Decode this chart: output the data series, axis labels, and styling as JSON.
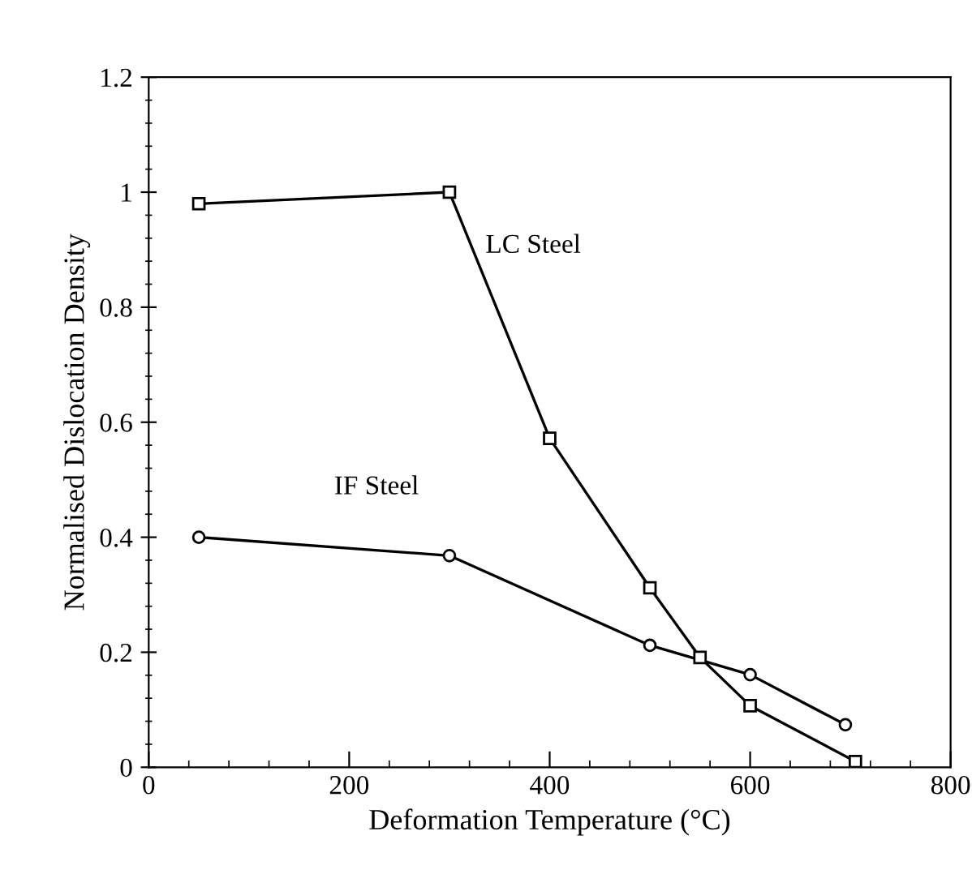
{
  "chart_data": {
    "type": "line",
    "xlabel": "Deformation Temperature (°C)",
    "ylabel": "Normalised Dislocation Density",
    "xlim": [
      0,
      800
    ],
    "xticks": [
      0,
      200,
      400,
      600,
      800
    ],
    "ylim": [
      0,
      1.2
    ],
    "yticks": [
      0,
      0.2,
      0.4,
      0.6,
      0.8,
      1,
      1.2
    ],
    "grid": false,
    "legend": false,
    "line_style": "solid",
    "series": [
      {
        "name": "LC Steel",
        "color": "#000000",
        "marker": "square",
        "x": [
          50,
          300,
          400,
          500,
          550,
          600,
          705
        ],
        "values": [
          0.98,
          1.0,
          0.572,
          0.312,
          0.191,
          0.107,
          0.01
        ]
      },
      {
        "name": "IF Steel",
        "color": "#000000",
        "marker": "circle",
        "x": [
          50,
          300,
          500,
          600,
          695
        ],
        "values": [
          0.4,
          0.368,
          0.212,
          0.161,
          0.074
        ]
      }
    ]
  }
}
